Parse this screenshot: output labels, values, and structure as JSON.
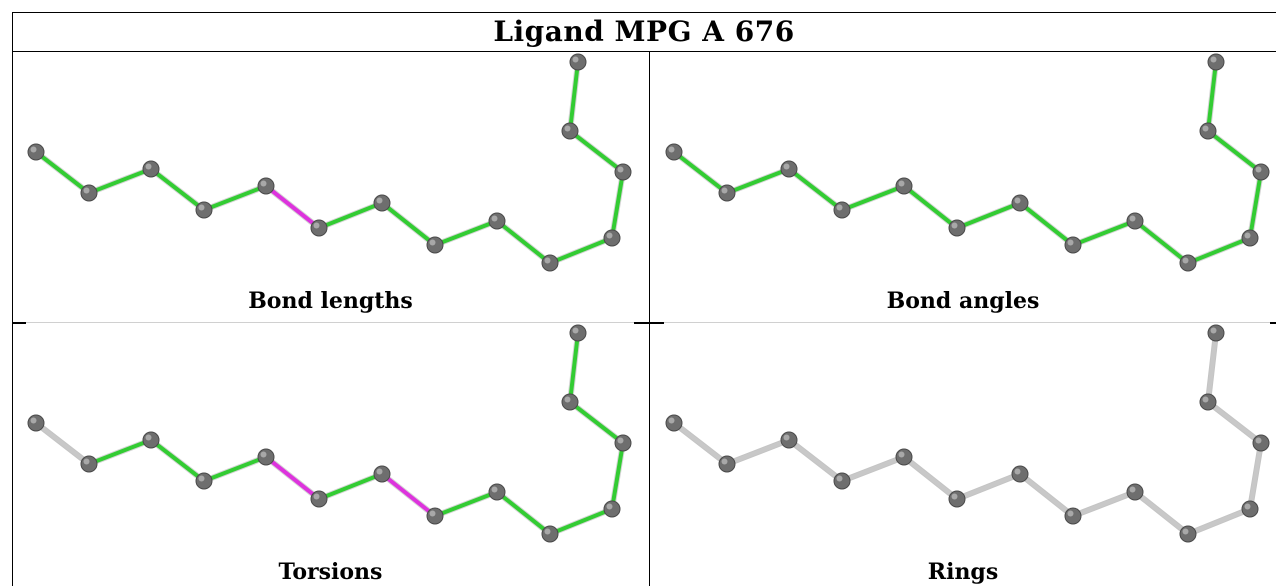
{
  "title": "Ligand MPG A 676",
  "colors": {
    "ok": "#33cc33",
    "outlier": "#dd33dd",
    "unassessed": "#c8c8c8",
    "atom": "#6e6e6e"
  },
  "panels": [
    {
      "key": "bond_lengths",
      "label": "Bond lengths",
      "bond_status": [
        "ok",
        "ok",
        "ok",
        "ok",
        "outlier",
        "ok",
        "ok",
        "ok",
        "ok",
        "ok",
        "ok",
        "ok",
        "ok",
        "ok"
      ]
    },
    {
      "key": "bond_angles",
      "label": "Bond angles",
      "bond_status": [
        "ok",
        "ok",
        "ok",
        "ok",
        "ok",
        "ok",
        "ok",
        "ok",
        "ok",
        "ok",
        "ok",
        "ok",
        "ok",
        "ok"
      ]
    },
    {
      "key": "torsions",
      "label": "Torsions",
      "bond_status": [
        "unassessed",
        "ok",
        "ok",
        "ok",
        "outlier",
        "ok",
        "outlier",
        "ok",
        "ok",
        "ok",
        "ok",
        "ok",
        "ok",
        "unassessed"
      ]
    },
    {
      "key": "rings",
      "label": "Rings",
      "bond_status": [
        "unassessed",
        "unassessed",
        "unassessed",
        "unassessed",
        "unassessed",
        "unassessed",
        "unassessed",
        "unassessed",
        "unassessed",
        "unassessed",
        "unassessed",
        "unassessed",
        "unassessed",
        "unassessed"
      ]
    }
  ]
}
